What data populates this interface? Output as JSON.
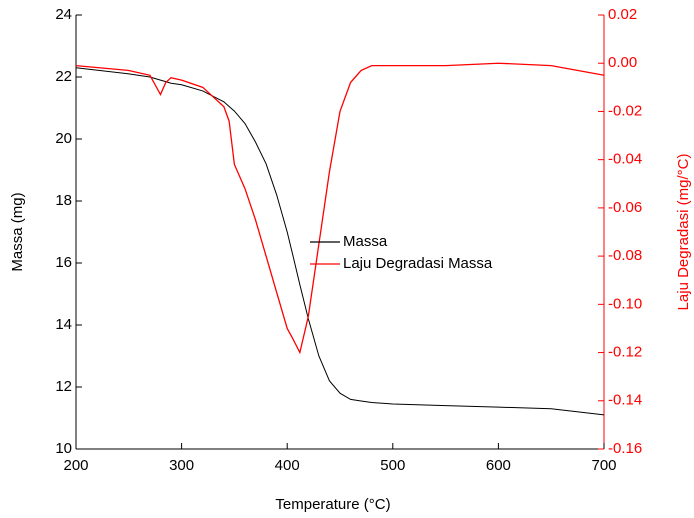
{
  "chart_data": {
    "type": "line",
    "x_label": "Temperature (°C)",
    "y_label": "Massa (mg)",
    "y2_label": "Laju Degradasi (mg/°C)",
    "x": [
      200,
      250,
      270,
      280,
      285,
      290,
      300,
      320,
      340,
      345,
      350,
      360,
      370,
      380,
      390,
      400,
      405,
      412,
      420,
      430,
      440,
      450,
      460,
      470,
      480,
      500,
      550,
      600,
      650,
      700
    ],
    "series": [
      {
        "name": "Massa",
        "color": "#000000",
        "axis": "y",
        "values": [
          22.3,
          22.1,
          22.0,
          21.9,
          21.85,
          21.8,
          21.75,
          21.55,
          21.2,
          21.05,
          20.9,
          20.5,
          19.9,
          19.2,
          18.2,
          17.0,
          16.3,
          15.3,
          14.2,
          13.0,
          12.2,
          11.8,
          11.6,
          11.55,
          11.5,
          11.45,
          11.4,
          11.35,
          11.3,
          11.1
        ]
      },
      {
        "name": "Laju Degradasi Massa",
        "color": "#ff0000",
        "axis": "y2",
        "values": [
          -0.001,
          -0.003,
          -0.005,
          -0.013,
          -0.008,
          -0.006,
          -0.007,
          -0.01,
          -0.018,
          -0.024,
          -0.042,
          -0.052,
          -0.065,
          -0.08,
          -0.095,
          -0.11,
          -0.114,
          -0.12,
          -0.105,
          -0.075,
          -0.045,
          -0.02,
          -0.008,
          -0.003,
          -0.001,
          -0.001,
          -0.001,
          0.0,
          -0.001,
          -0.005
        ]
      }
    ],
    "xlim": [
      200,
      700
    ],
    "xticks": [
      200,
      300,
      400,
      500,
      600,
      700
    ],
    "ylim": [
      10,
      24
    ],
    "yticks": [
      10,
      12,
      14,
      16,
      18,
      20,
      22,
      24
    ],
    "y2lim": [
      -0.16,
      0.02
    ],
    "y2ticks": [
      -0.16,
      -0.14,
      -0.12,
      {
        "value": -0.1,
        "label": "-0.10"
      },
      -0.08,
      -0.06,
      -0.04,
      -0.02,
      {
        "value": 0,
        "label": "0.00"
      },
      0.02
    ],
    "y2_color": "#ff0000",
    "legend_position": "center",
    "grid": false
  }
}
